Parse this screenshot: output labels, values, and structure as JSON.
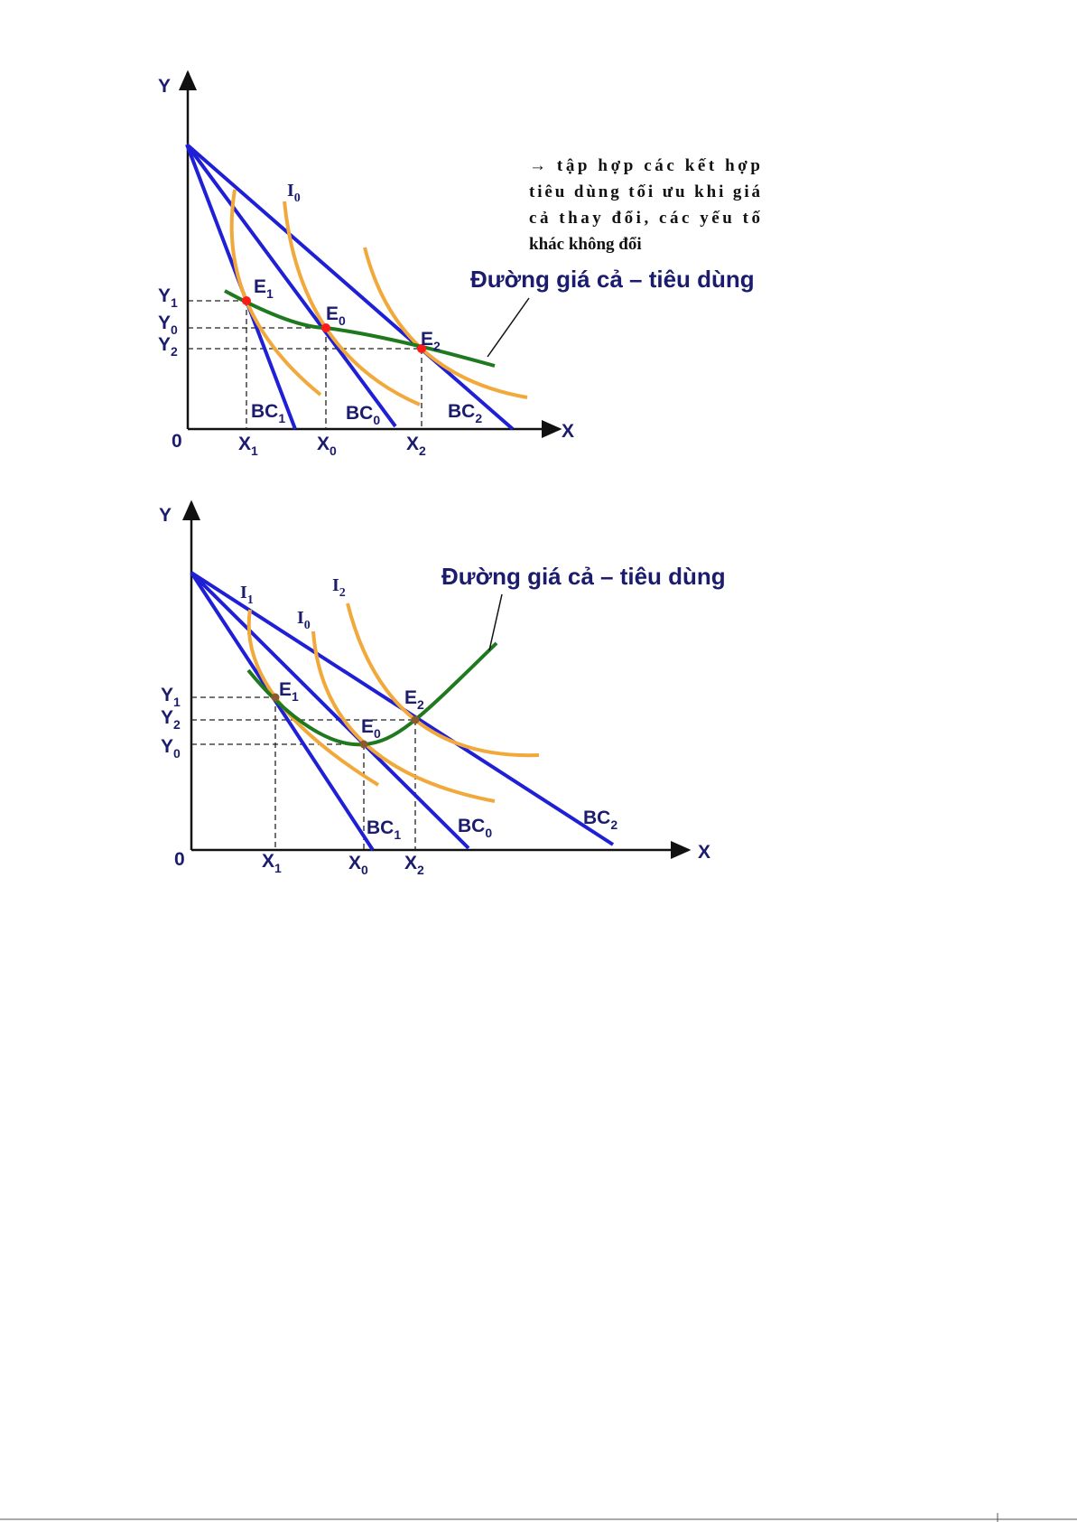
{
  "top": {
    "axis": {
      "y": "Y",
      "x": "X",
      "origin": "0"
    },
    "y_labels": [
      {
        "base": "Y",
        "sub": "1"
      },
      {
        "base": "Y",
        "sub": "0"
      },
      {
        "base": "Y",
        "sub": "2"
      }
    ],
    "x_labels": [
      {
        "base": "X",
        "sub": "1"
      },
      {
        "base": "X",
        "sub": "0"
      },
      {
        "base": "X",
        "sub": "2"
      }
    ],
    "budget_lines": [
      {
        "base": "BC",
        "sub": "1"
      },
      {
        "base": "BC",
        "sub": "0"
      },
      {
        "base": "BC",
        "sub": "2"
      }
    ],
    "indifference": [
      {
        "base": "I",
        "sub": "0"
      }
    ],
    "equilibria": [
      {
        "base": "E",
        "sub": "1"
      },
      {
        "base": "E",
        "sub": "0"
      },
      {
        "base": "E",
        "sub": "2"
      }
    ],
    "title": "Đường giá cả – tiêu dùng",
    "note_lines": [
      "→ tập hợp các kết hợp",
      "tiêu dùng tối ưu khi  giá",
      "cả  thay  đổi,  các  yếu  tố",
      "khác không đổi"
    ]
  },
  "bottom": {
    "axis": {
      "y": "Y",
      "x": "X",
      "origin": "0"
    },
    "y_labels": [
      {
        "base": "Y",
        "sub": "1"
      },
      {
        "base": "Y",
        "sub": "2"
      },
      {
        "base": "Y",
        "sub": "0"
      }
    ],
    "x_labels": [
      {
        "base": "X",
        "sub": "1"
      },
      {
        "base": "X",
        "sub": "0"
      },
      {
        "base": "X",
        "sub": "2"
      }
    ],
    "budget_lines": [
      {
        "base": "BC",
        "sub": "1"
      },
      {
        "base": "BC",
        "sub": "0"
      },
      {
        "base": "BC",
        "sub": "2"
      }
    ],
    "indifference": [
      {
        "base": "I",
        "sub": "1"
      },
      {
        "base": "I",
        "sub": "0"
      },
      {
        "base": "I",
        "sub": "2"
      }
    ],
    "equilibria": [
      {
        "base": "E",
        "sub": "1"
      },
      {
        "base": "E",
        "sub": "0"
      },
      {
        "base": "E",
        "sub": "2"
      }
    ],
    "title": "Đường giá cả – tiêu dùng"
  },
  "colors": {
    "budget": "#1f1fd6",
    "indifference": "#f2a93b",
    "pcc": "#1f7a1f",
    "equilibrium_top": "#ff1a1a",
    "equilibrium_bottom": "#8a5a2a",
    "text": "#1c1c6e"
  }
}
